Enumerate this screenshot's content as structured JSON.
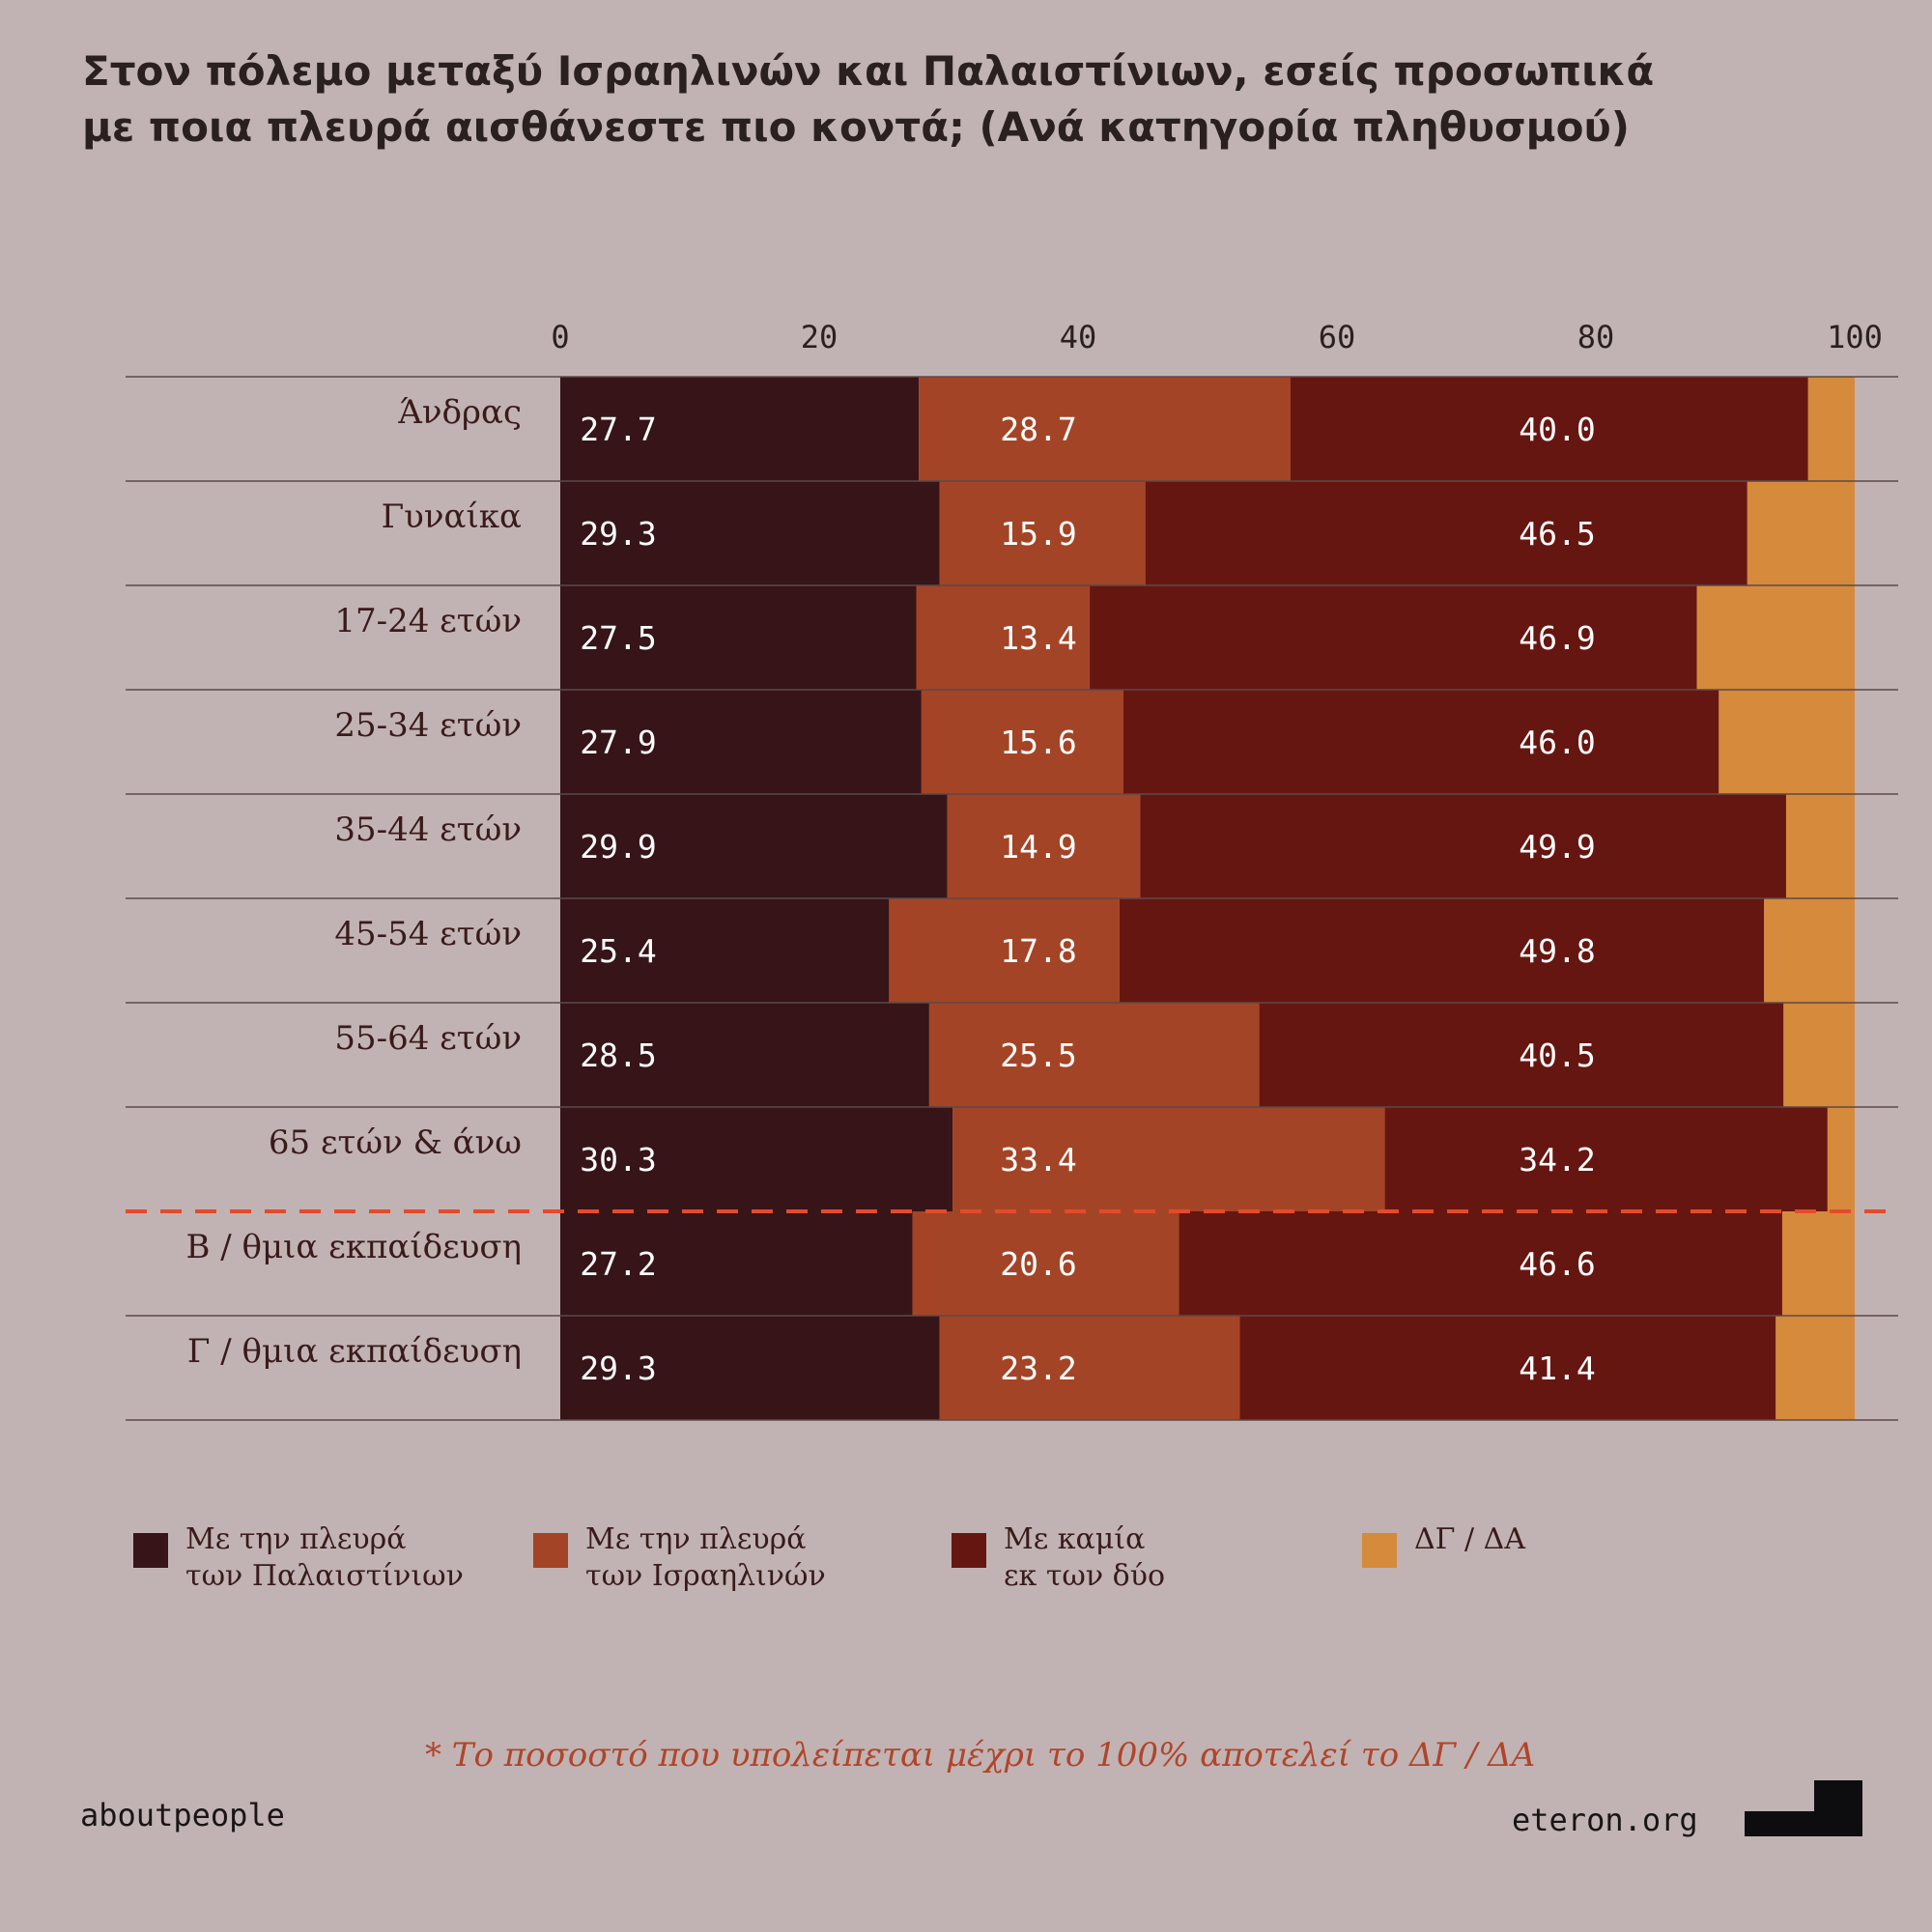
{
  "title": {
    "line1": "Στον πόλεμο μεταξύ Ισραηλινών και Παλαιστίνιων, εσείς προσωπικά",
    "line2": "με ποια πλευρά αισθάνεστε πιο κοντά; (Ανά κατηγορία πληθυσμού)"
  },
  "colors": {
    "palestinians": "#361417",
    "israelis": "#a44426",
    "neither": "#661611",
    "dk": "#d68a3b",
    "separator": "#e34b2c"
  },
  "chart_data": {
    "type": "bar",
    "orientation": "horizontal",
    "stacked": true,
    "xlim": [
      0,
      100
    ],
    "ticks": [
      "0",
      "20",
      "40",
      "60",
      "80",
      "100"
    ],
    "tick_values": [
      0,
      20,
      40,
      60,
      80,
      100
    ],
    "categories": [
      "Άνδρας",
      "Γυναίκα",
      "17-24 ετών",
      "25-34 ετών",
      "35-44 ετών",
      "45-54 ετών",
      "55-64 ετών",
      "65 ετών & άνω",
      "Β / θμια εκπαίδευση",
      "Γ / θμια εκπαίδευση"
    ],
    "separator_after_index": 7,
    "series": [
      {
        "name": "Με την πλευρά των Παλαιστίνιων",
        "labels": [
          "27.7",
          "29.3",
          "27.5",
          "27.9",
          "29.9",
          "25.4",
          "28.5",
          "30.3",
          "27.2",
          "29.3"
        ],
        "values": [
          27.7,
          29.3,
          27.5,
          27.9,
          29.9,
          25.4,
          28.5,
          30.3,
          27.2,
          29.3
        ],
        "color_key": "palestinians"
      },
      {
        "name": "Με την πλευρά των Ισραηλινών",
        "labels": [
          "28.7",
          "15.9",
          "13.4",
          "15.6",
          "14.9",
          "17.8",
          "25.5",
          "33.4",
          "20.6",
          "23.2"
        ],
        "values": [
          28.7,
          15.9,
          13.4,
          15.6,
          14.9,
          17.8,
          25.5,
          33.4,
          20.6,
          23.2
        ],
        "color_key": "israelis"
      },
      {
        "name": "Με καμία εκ των δύο",
        "labels": [
          "40.0",
          "46.5",
          "46.9",
          "46.0",
          "49.9",
          "49.8",
          "40.5",
          "34.2",
          "46.6",
          "41.4"
        ],
        "values": [
          40.0,
          46.5,
          46.9,
          46.0,
          49.9,
          49.8,
          40.5,
          34.2,
          46.6,
          41.4
        ],
        "color_key": "neither"
      },
      {
        "name": "ΔΓ / ΔΑ",
        "labels": [],
        "values": [
          3.6,
          8.3,
          12.2,
          10.5,
          5.3,
          7.0,
          5.5,
          2.1,
          5.6,
          6.1
        ],
        "color_key": "dk"
      }
    ]
  },
  "legend": [
    {
      "label": "Με την πλευρά\nτων Παλαιστίνιων",
      "color_key": "palestinians"
    },
    {
      "label": "Με την πλευρά\nτων Ισραηλινών",
      "color_key": "israelis"
    },
    {
      "label": "Με καμία\nεκ των δύο",
      "color_key": "neither"
    },
    {
      "label": "ΔΓ / ΔΑ",
      "color_key": "dk"
    }
  ],
  "footnote": "*  Το ποσοστό που υπολείπεται μέχρι το 100% αποτελεί το ΔΓ / ΔΑ",
  "brand_left": "aboutpeople",
  "brand_right": "eteron.org"
}
